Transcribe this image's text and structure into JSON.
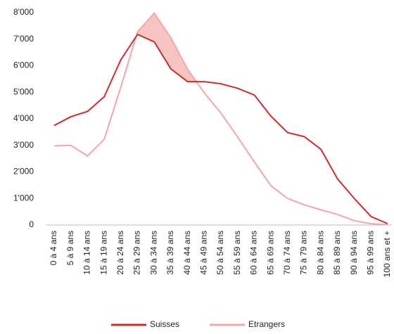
{
  "chart_data": {
    "type": "line",
    "categories": [
      "0 à 4 ans",
      "5 à 9 ans",
      "10 à 14 ans",
      "15 à 19 ans",
      "20 à 24 ans",
      "25 à 29 ans",
      "30 à 34 ans",
      "35 à 39 ans",
      "40 à 44 ans",
      "45 à 49 ans",
      "50 à 54 ans",
      "55 à 59 ans",
      "60 à 64 ans",
      "65 à 69 ans",
      "70 à 74 ans",
      "75 à 79 ans",
      "80 à 84 ans",
      "85 à 89 ans",
      "90 à 94 ans",
      "95 à 99 ans",
      "100 ans et +"
    ],
    "series": [
      {
        "name": "Suisses",
        "color": "#d42a2a",
        "values": [
          3750,
          4080,
          4280,
          4830,
          6230,
          7180,
          6900,
          5880,
          5400,
          5400,
          5320,
          5150,
          4900,
          4100,
          3480,
          3330,
          2850,
          1730,
          1000,
          320,
          50
        ]
      },
      {
        "name": "Etrangers",
        "color": "#f4a6a6",
        "values": [
          2980,
          3000,
          2600,
          3230,
          5200,
          7280,
          7980,
          7050,
          5870,
          4980,
          4220,
          3320,
          2380,
          1480,
          1000,
          760,
          570,
          400,
          160,
          50,
          10
        ]
      }
    ],
    "ylim": [
      0,
      8000
    ],
    "yticks": [
      0,
      {
        "value": 1000,
        "label": "1'000"
      },
      {
        "value": 2000,
        "label": "2'000"
      },
      {
        "value": 3000,
        "label": "3'000"
      },
      {
        "value": 4000,
        "label": "4'000"
      },
      {
        "value": 5000,
        "label": "5'000"
      },
      {
        "value": 6000,
        "label": "6'000"
      },
      {
        "value": 7000,
        "label": "7'000"
      },
      {
        "value": 8000,
        "label": "8'000"
      }
    ],
    "legend": "bottom"
  }
}
